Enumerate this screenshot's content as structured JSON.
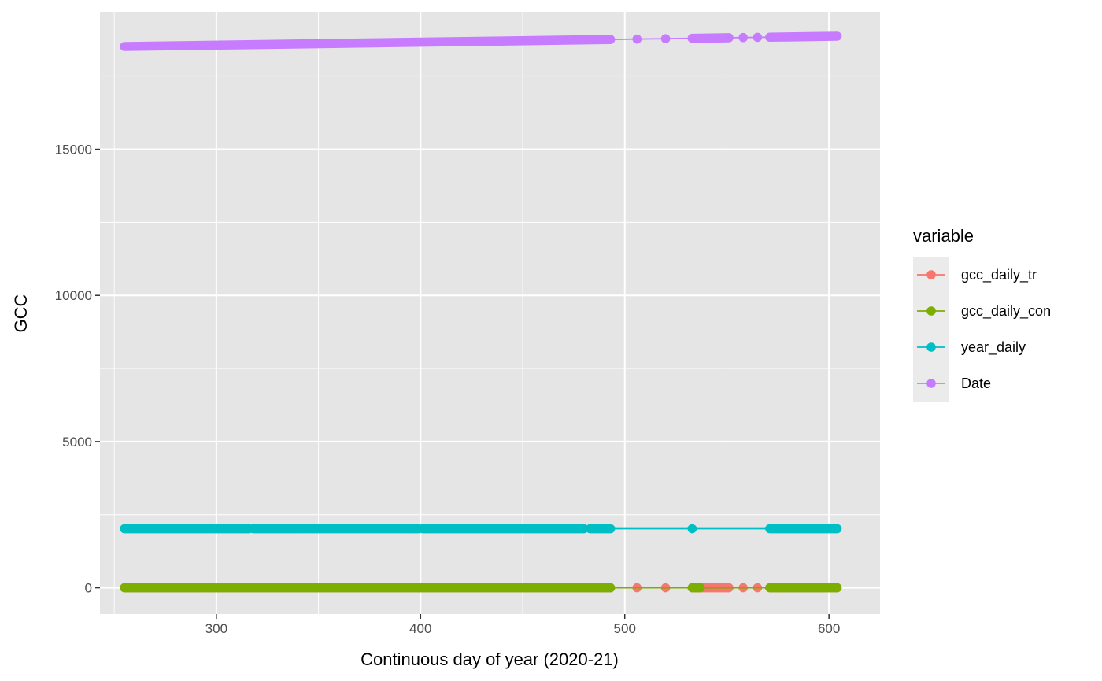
{
  "chart_data": {
    "type": "line",
    "title": "",
    "xlabel": "Continuous day of year (2020-21)",
    "ylabel": "GCC",
    "xlim": [
      243,
      625
    ],
    "ylim": [
      -900,
      19700
    ],
    "x_ticks": [
      300,
      400,
      500,
      600
    ],
    "y_ticks": [
      0,
      5000,
      10000,
      15000
    ],
    "x_ticks_labels": [
      "300",
      "400",
      "500",
      "600"
    ],
    "y_ticks_labels": [
      "0",
      "5000",
      "10000",
      "15000"
    ],
    "x_minor_ticks": [
      250,
      350,
      450,
      550
    ],
    "y_minor_ticks": [
      2500,
      7500,
      12500,
      17500
    ],
    "background": "#e5e5e5",
    "grid": true,
    "legend": {
      "title": "variable",
      "position": "right",
      "entries": [
        {
          "name": "gcc_daily_tr",
          "color": "#f8766d"
        },
        {
          "name": "gcc_daily_con",
          "color": "#7cae00"
        },
        {
          "name": "year_daily",
          "color": "#00bfc4"
        },
        {
          "name": "Date",
          "color": "#c77cff"
        }
      ]
    },
    "series": [
      {
        "name": "gcc_daily_tr",
        "color": "#f8766d",
        "value": 0.4,
        "x_ranges": [
          [
            255,
            493
          ],
          [
            533,
            551
          ],
          [
            571,
            604
          ]
        ],
        "x_points": [
          506,
          520,
          558,
          565
        ]
      },
      {
        "name": "gcc_daily_con",
        "color": "#7cae00",
        "value": 0.4,
        "x_ranges": [
          [
            255,
            493
          ],
          [
            533,
            537
          ],
          [
            571,
            604
          ]
        ],
        "x_points": []
      },
      {
        "name": "year_daily",
        "color": "#00bfc4",
        "value": 2021,
        "x_ranges": [
          [
            255,
            316
          ],
          [
            318,
            399
          ],
          [
            401,
            480
          ],
          [
            483,
            493
          ],
          [
            571,
            604
          ]
        ],
        "x_points": [
          533
        ]
      },
      {
        "name": "Date",
        "color": "#c77cff",
        "value_start": 18515,
        "value_end": 18865,
        "x_start": 255,
        "x_ranges": [
          [
            255,
            493
          ],
          [
            533,
            551
          ],
          [
            571,
            604
          ]
        ],
        "x_points": [
          506,
          520,
          558,
          565
        ]
      }
    ]
  }
}
